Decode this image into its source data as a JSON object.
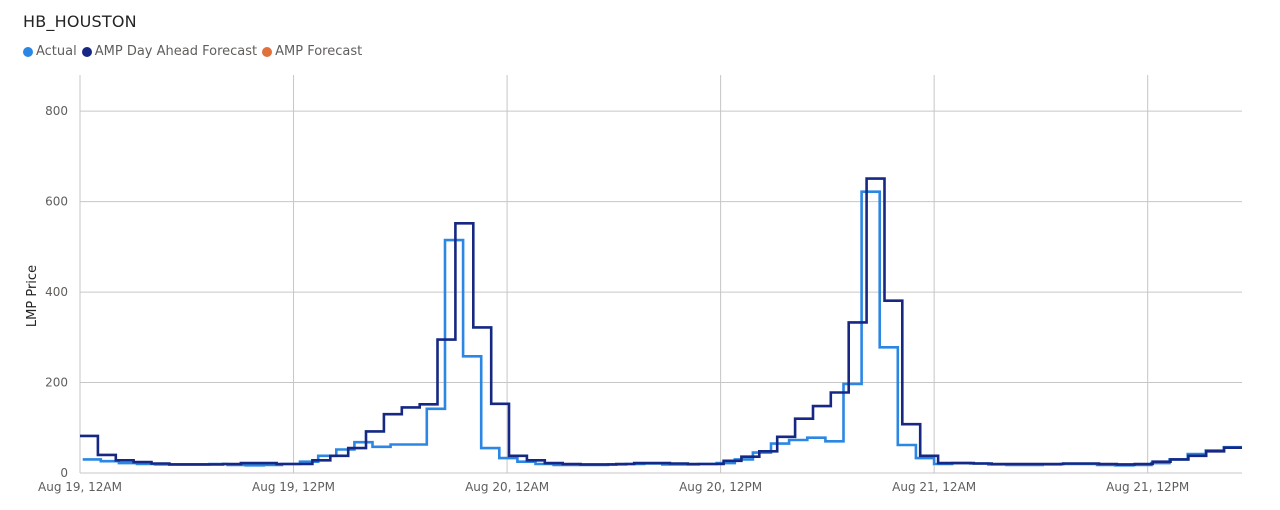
{
  "title": "HB_HOUSTON",
  "legend": [
    {
      "label": "Actual",
      "color": "#2b87e3"
    },
    {
      "label": "AMP Day Ahead Forecast",
      "color": "#162883"
    },
    {
      "label": "AMP Forecast",
      "color": "#e0703c"
    }
  ],
  "chart_data": {
    "type": "line",
    "step": true,
    "ylabel": "LMP Price",
    "ylim": [
      0,
      880
    ],
    "yticks": [
      0,
      200,
      400,
      600,
      800
    ],
    "xlim_hours": [
      0,
      65.3
    ],
    "xticks": [
      {
        "hour": 0,
        "label": "Aug 19, 12AM"
      },
      {
        "hour": 12,
        "label": "Aug 19, 12PM"
      },
      {
        "hour": 24,
        "label": "Aug 20, 12AM"
      },
      {
        "hour": 36,
        "label": "Aug 20, 12PM"
      },
      {
        "hour": 48,
        "label": "Aug 21, 12AM"
      },
      {
        "hour": 60,
        "label": "Aug 21, 12PM"
      }
    ],
    "grid": true,
    "legend_position": "top-left",
    "series": [
      {
        "name": "Actual",
        "color": "#2b87e3",
        "values": [
          30,
          26,
          22,
          20,
          19,
          19,
          19,
          20,
          18,
          17,
          18,
          20,
          25,
          38,
          52,
          68,
          58,
          63,
          63,
          142,
          515,
          258,
          55,
          33,
          25,
          20,
          18,
          18,
          18,
          19,
          20,
          21,
          19,
          19,
          20,
          22,
          30,
          45,
          65,
          73,
          78,
          70,
          197,
          622,
          278,
          62,
          33,
          20,
          22,
          21,
          19,
          18,
          18,
          19,
          20,
          20,
          18,
          17,
          18,
          22,
          30,
          42,
          50,
          57
        ]
      },
      {
        "name": "AMP Day Ahead Forecast",
        "color": "#162883",
        "values": [
          82,
          40,
          28,
          24,
          21,
          19,
          19,
          19,
          20,
          22,
          22,
          20,
          20,
          28,
          38,
          55,
          92,
          130,
          145,
          152,
          295,
          552,
          322,
          153,
          38,
          28,
          22,
          20,
          19,
          19,
          20,
          22,
          22,
          21,
          20,
          20,
          27,
          36,
          48,
          80,
          120,
          148,
          178,
          333,
          651,
          381,
          108,
          38,
          22,
          22,
          21,
          20,
          20,
          20,
          20,
          21,
          21,
          20,
          19,
          20,
          25,
          30,
          38,
          48,
          56
        ]
      },
      {
        "name": "AMP Forecast",
        "color": "#e0703c",
        "values": []
      }
    ]
  }
}
